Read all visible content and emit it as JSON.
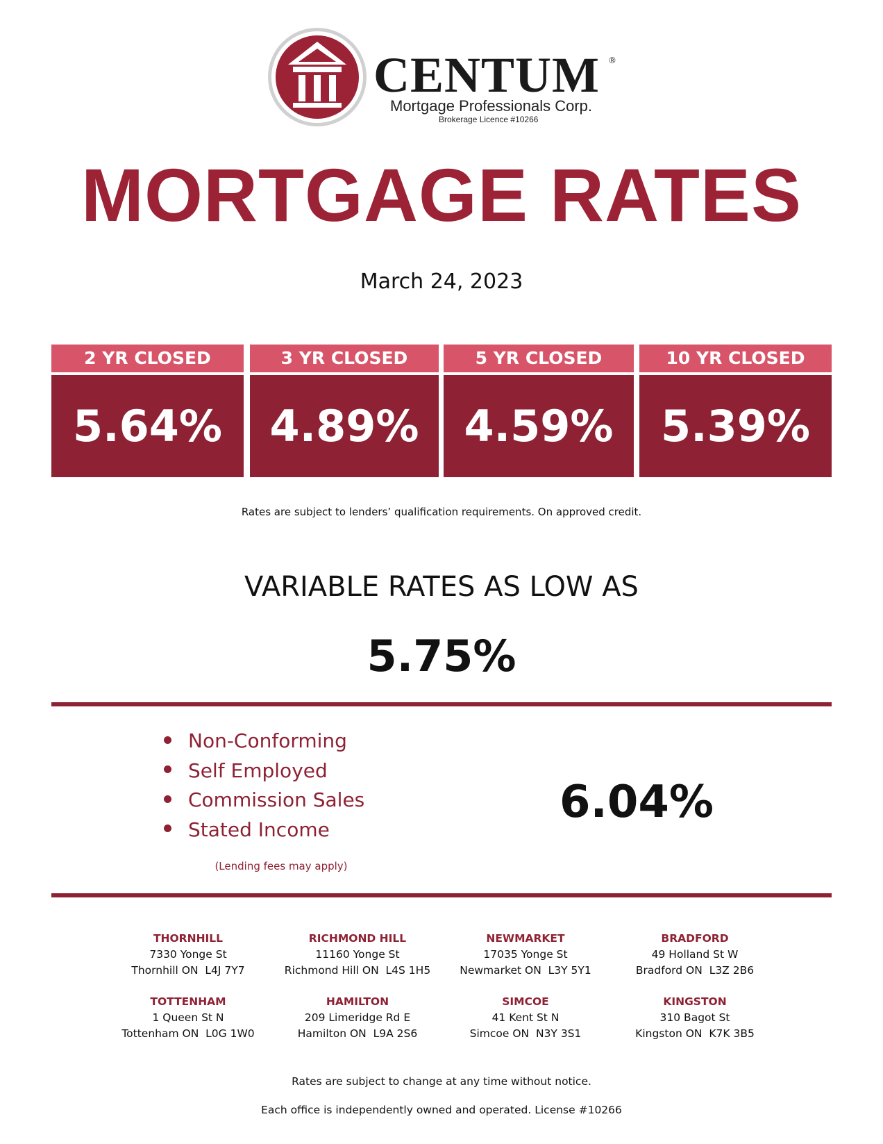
{
  "header": {
    "brand": "CENTUM",
    "registered": "®",
    "tagline": "Mortgage Professionals Corp.",
    "licence": "Brokerage Licence #10266"
  },
  "title": "MORTGAGE RATES",
  "date": "March 24, 2023",
  "fixed_rates": [
    {
      "term": "2 YR CLOSED",
      "rate": "5.64%"
    },
    {
      "term": "3 YR CLOSED",
      "rate": "4.89%"
    },
    {
      "term": "5 YR CLOSED",
      "rate": "4.59%"
    },
    {
      "term": "10 YR CLOSED",
      "rate": "5.39%"
    }
  ],
  "rates_note": "Rates are subject to lenders’ qualification requirements. On approved credit.",
  "variable": {
    "label": "VARIABLE RATES AS LOW AS",
    "rate": "5.75%"
  },
  "special": {
    "items": [
      "Non-Conforming",
      "Self Employed",
      "Commission Sales",
      "Stated Income"
    ],
    "note": "(Lending fees may apply)",
    "rate": "6.04%"
  },
  "offices": [
    {
      "name": "THORNHILL",
      "street": "7330 Yonge St",
      "city": "Thornhill ON  L4J 7Y7"
    },
    {
      "name": "RICHMOND HILL",
      "street": "11160 Yonge St",
      "city": "Richmond Hill ON  L4S 1H5"
    },
    {
      "name": "NEWMARKET",
      "street": "17035 Yonge St",
      "city": "Newmarket ON  L3Y 5Y1"
    },
    {
      "name": "BRADFORD",
      "street": "49 Holland St W",
      "city": "Bradford ON  L3Z 2B6"
    },
    {
      "name": "TOTTENHAM",
      "street": "1 Queen St N",
      "city": "Tottenham ON  L0G 1W0"
    },
    {
      "name": "HAMILTON",
      "street": "209 Limeridge Rd E",
      "city": "Hamilton ON  L9A 2S6"
    },
    {
      "name": "SIMCOE",
      "street": "41 Kent St N",
      "city": "Simcoe ON  N3Y 3S1"
    },
    {
      "name": "KINGSTON",
      "street": "310 Bagot St",
      "city": "Kingston ON  K7K 3B5"
    }
  ],
  "footer": [
    "Rates are subject to change at any time without notice.",
    "Each office is independently owned and operated. License #10266"
  ]
}
